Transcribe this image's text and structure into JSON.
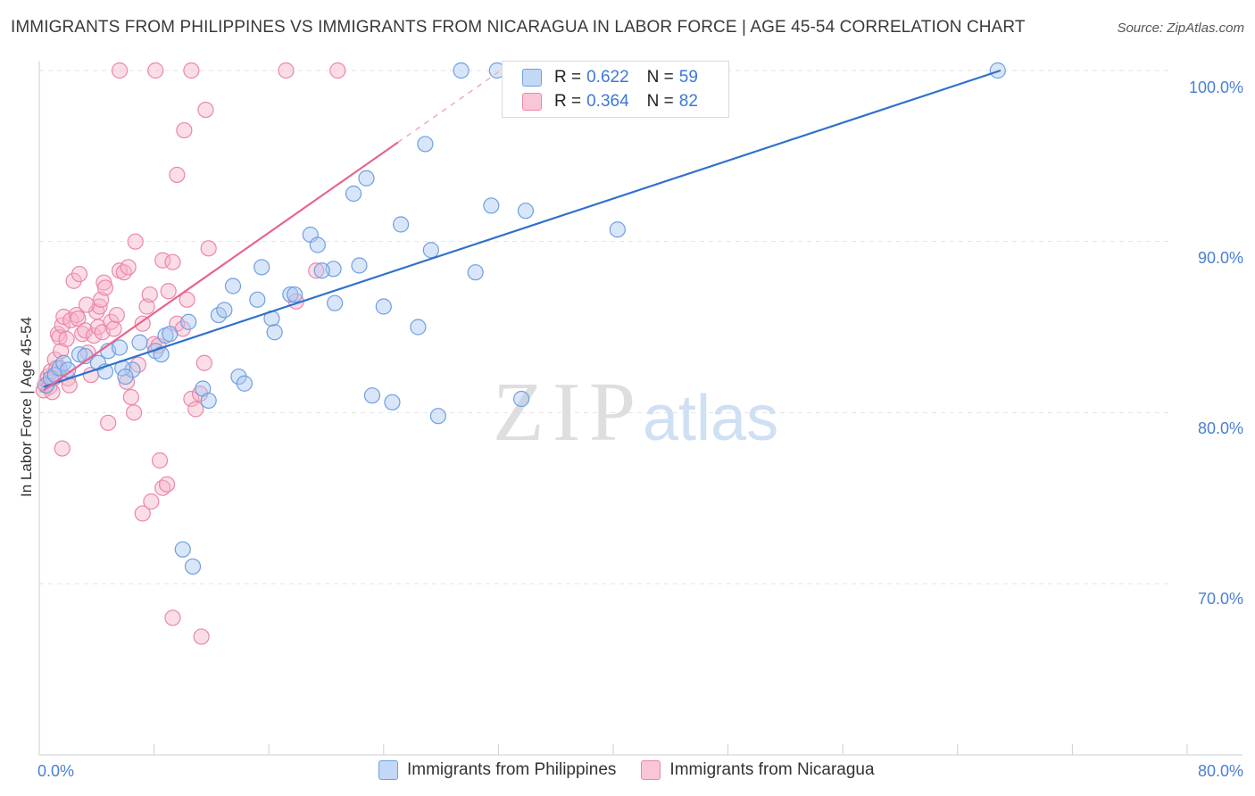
{
  "header": {
    "title": "IMMIGRANTS FROM PHILIPPINES VS IMMIGRANTS FROM NICARAGUA IN LABOR FORCE | AGE 45-54 CORRELATION CHART",
    "source": "Source: ZipAtlas.com"
  },
  "watermark": {
    "zip": "ZIP",
    "atlas": "atlas"
  },
  "legend": {
    "r_label": "R =",
    "n_label": "N =",
    "rows": [
      {
        "r": "0.622",
        "n": "59"
      },
      {
        "r": "0.364",
        "n": "82"
      }
    ]
  },
  "colors": {
    "blue_fill": "#aac8f2",
    "blue_stroke": "#6e9fe0",
    "blue_line": "#2f6fcc",
    "pink_fill": "#f6b3c8",
    "pink_stroke": "#ea87a8",
    "pink_line": "#e8648f",
    "axis_text": "#4a7fd4",
    "grid": "#e3e3e3"
  },
  "chart_data": {
    "type": "scatter",
    "title": "IMMIGRANTS FROM PHILIPPINES VS IMMIGRANTS FROM NICARAGUA IN LABOR FORCE | AGE 45-54 CORRELATION CHART",
    "xlabel": "",
    "ylabel": "In Labor Force | Age 45-54",
    "xlim": [
      0,
      80
    ],
    "ylim": [
      60,
      101
    ],
    "x_tick_labels": [
      "0.0%",
      "80.0%"
    ],
    "y_ticks": [
      70,
      80,
      90,
      100
    ],
    "y_tick_labels": [
      "70.0%",
      "80.0%",
      "90.0%",
      "100.0%"
    ],
    "legend_position": "top-center",
    "series": [
      {
        "name": "Immigrants from Philippines",
        "color": "#6e9fe0",
        "r": 0.622,
        "n": 59,
        "trend": {
          "x0": 0.3,
          "y0": 81.5,
          "x1": 67,
          "y1": 100.0
        },
        "points": [
          [
            0.5,
            81.6
          ],
          [
            0.8,
            82.0
          ],
          [
            1.1,
            82.2
          ],
          [
            1.4,
            82.6
          ],
          [
            1.7,
            82.9
          ],
          [
            2.0,
            82.5
          ],
          [
            2.8,
            83.4
          ],
          [
            3.2,
            83.3
          ],
          [
            4.1,
            82.9
          ],
          [
            4.8,
            83.6
          ],
          [
            4.6,
            82.4
          ],
          [
            5.6,
            83.8
          ],
          [
            6.5,
            82.5
          ],
          [
            5.8,
            82.6
          ],
          [
            6.0,
            82.1
          ],
          [
            7.0,
            84.1
          ],
          [
            8.1,
            83.6
          ],
          [
            8.5,
            83.4
          ],
          [
            8.8,
            84.5
          ],
          [
            9.1,
            84.6
          ],
          [
            10.4,
            85.3
          ],
          [
            11.4,
            81.4
          ],
          [
            11.8,
            80.7
          ],
          [
            12.5,
            85.7
          ],
          [
            12.9,
            86.0
          ],
          [
            13.5,
            87.4
          ],
          [
            13.9,
            82.1
          ],
          [
            14.3,
            81.7
          ],
          [
            15.2,
            86.6
          ],
          [
            15.5,
            88.5
          ],
          [
            16.2,
            85.5
          ],
          [
            16.4,
            84.7
          ],
          [
            17.5,
            86.9
          ],
          [
            17.8,
            86.9
          ],
          [
            18.9,
            90.4
          ],
          [
            19.4,
            89.8
          ],
          [
            20.5,
            88.4
          ],
          [
            19.7,
            88.3
          ],
          [
            20.6,
            86.4
          ],
          [
            21.9,
            92.8
          ],
          [
            22.3,
            88.6
          ],
          [
            22.8,
            93.7
          ],
          [
            23.2,
            81.0
          ],
          [
            24.0,
            86.2
          ],
          [
            24.6,
            80.6
          ],
          [
            25.2,
            91.0
          ],
          [
            26.4,
            85.0
          ],
          [
            26.9,
            95.7
          ],
          [
            27.3,
            89.5
          ],
          [
            27.8,
            79.8
          ],
          [
            29.4,
            100.0
          ],
          [
            30.4,
            88.2
          ],
          [
            31.5,
            92.1
          ],
          [
            31.9,
            100.0
          ],
          [
            33.6,
            80.8
          ],
          [
            33.9,
            91.8
          ],
          [
            40.3,
            90.7
          ],
          [
            66.8,
            100.0
          ],
          [
            10.0,
            72.0
          ],
          [
            10.7,
            71.0
          ]
        ]
      },
      {
        "name": "Immigrants from Nicaragua",
        "color": "#ea87a8",
        "r": 0.364,
        "n": 82,
        "trend": {
          "x0": 0.3,
          "y0": 81.3,
          "x1": 25.0,
          "y1": 95.8
        },
        "points": [
          [
            0.3,
            81.3
          ],
          [
            0.4,
            81.6
          ],
          [
            0.5,
            81.9
          ],
          [
            0.6,
            82.1
          ],
          [
            0.7,
            81.5
          ],
          [
            0.8,
            82.4
          ],
          [
            0.9,
            81.2
          ],
          [
            1.0,
            82.0
          ],
          [
            1.1,
            83.1
          ],
          [
            1.2,
            82.6
          ],
          [
            1.3,
            84.6
          ],
          [
            1.4,
            84.4
          ],
          [
            1.5,
            83.6
          ],
          [
            1.6,
            85.1
          ],
          [
            1.7,
            85.6
          ],
          [
            1.9,
            84.3
          ],
          [
            2.0,
            82.0
          ],
          [
            2.1,
            81.6
          ],
          [
            2.2,
            85.4
          ],
          [
            2.4,
            87.7
          ],
          [
            2.6,
            85.7
          ],
          [
            2.7,
            85.5
          ],
          [
            2.8,
            88.1
          ],
          [
            3.0,
            84.6
          ],
          [
            3.2,
            84.8
          ],
          [
            3.4,
            83.5
          ],
          [
            3.6,
            82.2
          ],
          [
            3.8,
            84.5
          ],
          [
            4.0,
            85.9
          ],
          [
            4.1,
            85.0
          ],
          [
            4.2,
            86.2
          ],
          [
            4.3,
            86.6
          ],
          [
            4.4,
            84.7
          ],
          [
            4.5,
            87.6
          ],
          [
            4.6,
            87.3
          ],
          [
            4.8,
            79.4
          ],
          [
            5.0,
            85.3
          ],
          [
            5.2,
            84.9
          ],
          [
            5.4,
            85.7
          ],
          [
            5.6,
            88.3
          ],
          [
            5.9,
            88.2
          ],
          [
            6.2,
            88.5
          ],
          [
            6.4,
            80.9
          ],
          [
            6.6,
            80.0
          ],
          [
            6.9,
            82.8
          ],
          [
            7.2,
            85.2
          ],
          [
            7.5,
            86.2
          ],
          [
            7.7,
            86.9
          ],
          [
            8.0,
            84.0
          ],
          [
            8.3,
            83.9
          ],
          [
            8.6,
            88.9
          ],
          [
            9.0,
            87.1
          ],
          [
            9.3,
            88.8
          ],
          [
            9.6,
            85.2
          ],
          [
            10.0,
            84.9
          ],
          [
            10.3,
            86.6
          ],
          [
            10.6,
            80.8
          ],
          [
            10.9,
            80.2
          ],
          [
            11.2,
            81.1
          ],
          [
            11.5,
            82.9
          ],
          [
            6.7,
            90.0
          ],
          [
            9.6,
            93.9
          ],
          [
            10.1,
            96.5
          ],
          [
            11.6,
            97.7
          ],
          [
            11.8,
            89.6
          ],
          [
            5.6,
            100.0
          ],
          [
            8.1,
            100.0
          ],
          [
            10.6,
            100.0
          ],
          [
            17.2,
            100.0
          ],
          [
            20.8,
            100.0
          ],
          [
            8.4,
            77.2
          ],
          [
            8.6,
            75.6
          ],
          [
            7.8,
            74.8
          ],
          [
            7.2,
            74.1
          ],
          [
            8.9,
            75.8
          ],
          [
            1.6,
            77.9
          ],
          [
            9.3,
            68.0
          ],
          [
            11.3,
            66.9
          ],
          [
            19.3,
            88.3
          ],
          [
            17.9,
            86.5
          ],
          [
            3.3,
            86.3
          ],
          [
            6.1,
            81.8
          ]
        ]
      }
    ]
  },
  "axis": {
    "ylabel": "In Labor Force | Age 45-54",
    "x_min_label": "0.0%",
    "x_max_label": "80.0%",
    "y_labels": [
      "70.0%",
      "80.0%",
      "90.0%",
      "100.0%"
    ]
  },
  "bottom_legend": {
    "items": [
      "Immigrants from Philippines",
      "Immigrants from Nicaragua"
    ]
  }
}
